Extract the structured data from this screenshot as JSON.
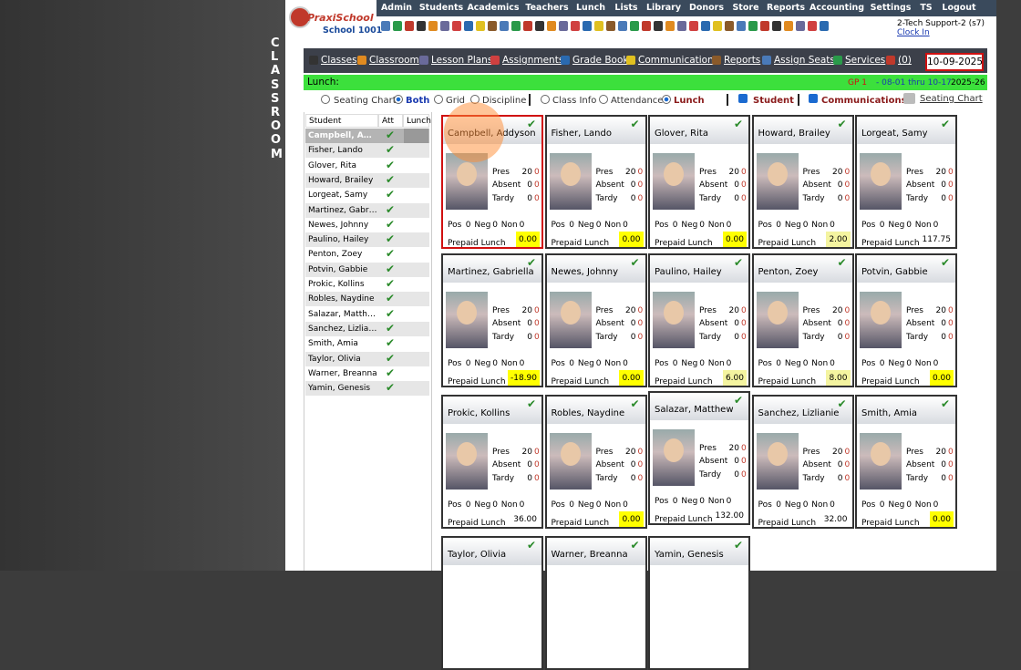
{
  "sidebar_title": "CLASSROOM",
  "logo": {
    "brand": "PraxiSchool",
    "school": "School 1001"
  },
  "nav": [
    "Admin",
    "Students",
    "Academics",
    "Teachers",
    "Lunch",
    "Lists",
    "Library",
    "Donors",
    "Store",
    "Reports",
    "Accounting",
    "Settings",
    "TS",
    "Logout"
  ],
  "user": {
    "name": "2-Tech Support-2 (s7)",
    "clock": "Clock In"
  },
  "toolbar": {
    "links": [
      "Classes",
      "Classroom",
      "Lesson Plans",
      "Assignments",
      "Grade Book",
      "Communications",
      "Reports",
      "Assign Seats",
      "Services",
      "(0)"
    ],
    "date": "10-09-2025"
  },
  "lunch_bar": {
    "label": "Lunch:",
    "period": "GP 1",
    "range": "- 08-01 thru 10-17",
    "year": "2025-26"
  },
  "options": {
    "view": [
      "Seating Chart",
      "Both",
      "Grid",
      "Discipline"
    ],
    "view_selected": 1,
    "display": [
      "Class Info",
      "Attendance",
      "Lunch"
    ],
    "display_selected": 2,
    "checks": [
      "Student",
      "Communications"
    ],
    "seating_link": "Seating Chart"
  },
  "table": {
    "headers": [
      "Student",
      "Att",
      "Lunch"
    ]
  },
  "card_labels": {
    "pres": "Pres",
    "absent": "Absent",
    "tardy": "Tardy",
    "pos": "Pos",
    "neg": "Neg",
    "non": "Non",
    "lunch": "Prepaid Lunch"
  },
  "selected_student": 0,
  "students": [
    {
      "name": "Campbell, Addyson",
      "pres": [
        20,
        0
      ],
      "absent": [
        0,
        0
      ],
      "tardy": [
        0,
        0
      ],
      "pos": 0,
      "neg": 0,
      "non": 0,
      "lunch": "0.00",
      "highlight": "#ffff00"
    },
    {
      "name": "Fisher, Lando",
      "pres": [
        20,
        0
      ],
      "absent": [
        0,
        0
      ],
      "tardy": [
        0,
        0
      ],
      "pos": 0,
      "neg": 0,
      "non": 0,
      "lunch": "0.00",
      "highlight": "#ffff00"
    },
    {
      "name": "Glover, Rita",
      "pres": [
        20,
        0
      ],
      "absent": [
        0,
        0
      ],
      "tardy": [
        0,
        0
      ],
      "pos": 0,
      "neg": 0,
      "non": 0,
      "lunch": "0.00",
      "highlight": "#ffff00"
    },
    {
      "name": "Howard, Brailey",
      "pres": [
        20,
        0
      ],
      "absent": [
        0,
        0
      ],
      "tardy": [
        0,
        0
      ],
      "pos": 0,
      "neg": 0,
      "non": 0,
      "lunch": "2.00",
      "highlight": "#f4f4a0"
    },
    {
      "name": "Lorgeat, Samy",
      "pres": [
        20,
        0
      ],
      "absent": [
        0,
        0
      ],
      "tardy": [
        0,
        0
      ],
      "pos": 0,
      "neg": 0,
      "non": 0,
      "lunch": "117.75"
    },
    {
      "name": "Martinez, Gabriella",
      "pres": [
        20,
        0
      ],
      "absent": [
        0,
        0
      ],
      "tardy": [
        0,
        0
      ],
      "pos": 0,
      "neg": 0,
      "non": 0,
      "lunch": "-18.90",
      "highlight": "#ffff00"
    },
    {
      "name": "Newes, Johnny",
      "pres": [
        20,
        0
      ],
      "absent": [
        0,
        0
      ],
      "tardy": [
        0,
        0
      ],
      "pos": 0,
      "neg": 0,
      "non": 0,
      "lunch": "0.00",
      "highlight": "#ffff00"
    },
    {
      "name": "Paulino, Hailey",
      "pres": [
        20,
        0
      ],
      "absent": [
        0,
        0
      ],
      "tardy": [
        0,
        0
      ],
      "pos": 0,
      "neg": 0,
      "non": 0,
      "lunch": "6.00",
      "highlight": "#f4f4a0"
    },
    {
      "name": "Penton, Zoey",
      "pres": [
        20,
        0
      ],
      "absent": [
        0,
        0
      ],
      "tardy": [
        0,
        0
      ],
      "pos": 0,
      "neg": 0,
      "non": 0,
      "lunch": "8.00",
      "highlight": "#f4f4a0"
    },
    {
      "name": "Potvin, Gabbie",
      "pres": [
        20,
        0
      ],
      "absent": [
        0,
        0
      ],
      "tardy": [
        0,
        0
      ],
      "pos": 0,
      "neg": 0,
      "non": 0,
      "lunch": "0.00",
      "highlight": "#ffff00"
    },
    {
      "name": "Prokic, Kollins",
      "pres": [
        20,
        0
      ],
      "absent": [
        0,
        0
      ],
      "tardy": [
        0,
        0
      ],
      "pos": 0,
      "neg": 0,
      "non": 0,
      "lunch": "36.00"
    },
    {
      "name": "Robles, Naydine",
      "pres": [
        20,
        0
      ],
      "absent": [
        0,
        0
      ],
      "tardy": [
        0,
        0
      ],
      "pos": 0,
      "neg": 0,
      "non": 0,
      "lunch": "0.00",
      "highlight": "#ffff00"
    },
    {
      "name": "Salazar, Matthew",
      "pres": [
        20,
        0
      ],
      "absent": [
        0,
        0
      ],
      "tardy": [
        0,
        0
      ],
      "pos": 0,
      "neg": 0,
      "non": 0,
      "lunch": "132.00"
    },
    {
      "name": "Sanchez, Lizlianie",
      "pres": [
        20,
        0
      ],
      "absent": [
        0,
        0
      ],
      "tardy": [
        0,
        0
      ],
      "pos": 0,
      "neg": 0,
      "non": 0,
      "lunch": "32.00"
    },
    {
      "name": "Smith, Amia",
      "pres": [
        20,
        0
      ],
      "absent": [
        0,
        0
      ],
      "tardy": [
        0,
        0
      ],
      "pos": 0,
      "neg": 0,
      "non": 0,
      "lunch": "0.00",
      "highlight": "#ffff00"
    },
    {
      "name": "Taylor, Olivia"
    },
    {
      "name": "Warner, Breanna"
    },
    {
      "name": "Yamin, Genesis"
    }
  ]
}
